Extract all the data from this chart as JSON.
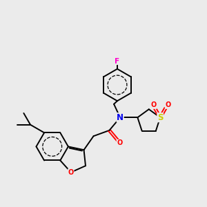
{
  "background_color": "#ebebeb",
  "figsize": [
    3.0,
    3.0
  ],
  "dpi": 100,
  "bond_color": "#000000",
  "bond_lw": 1.4,
  "atom_colors": {
    "F": "#ff00cc",
    "N": "#0000ee",
    "O": "#ff0000",
    "S": "#cccc00",
    "C": "#000000"
  },
  "layout": {
    "xlim": [
      0,
      10
    ],
    "ylim": [
      0,
      10
    ]
  }
}
